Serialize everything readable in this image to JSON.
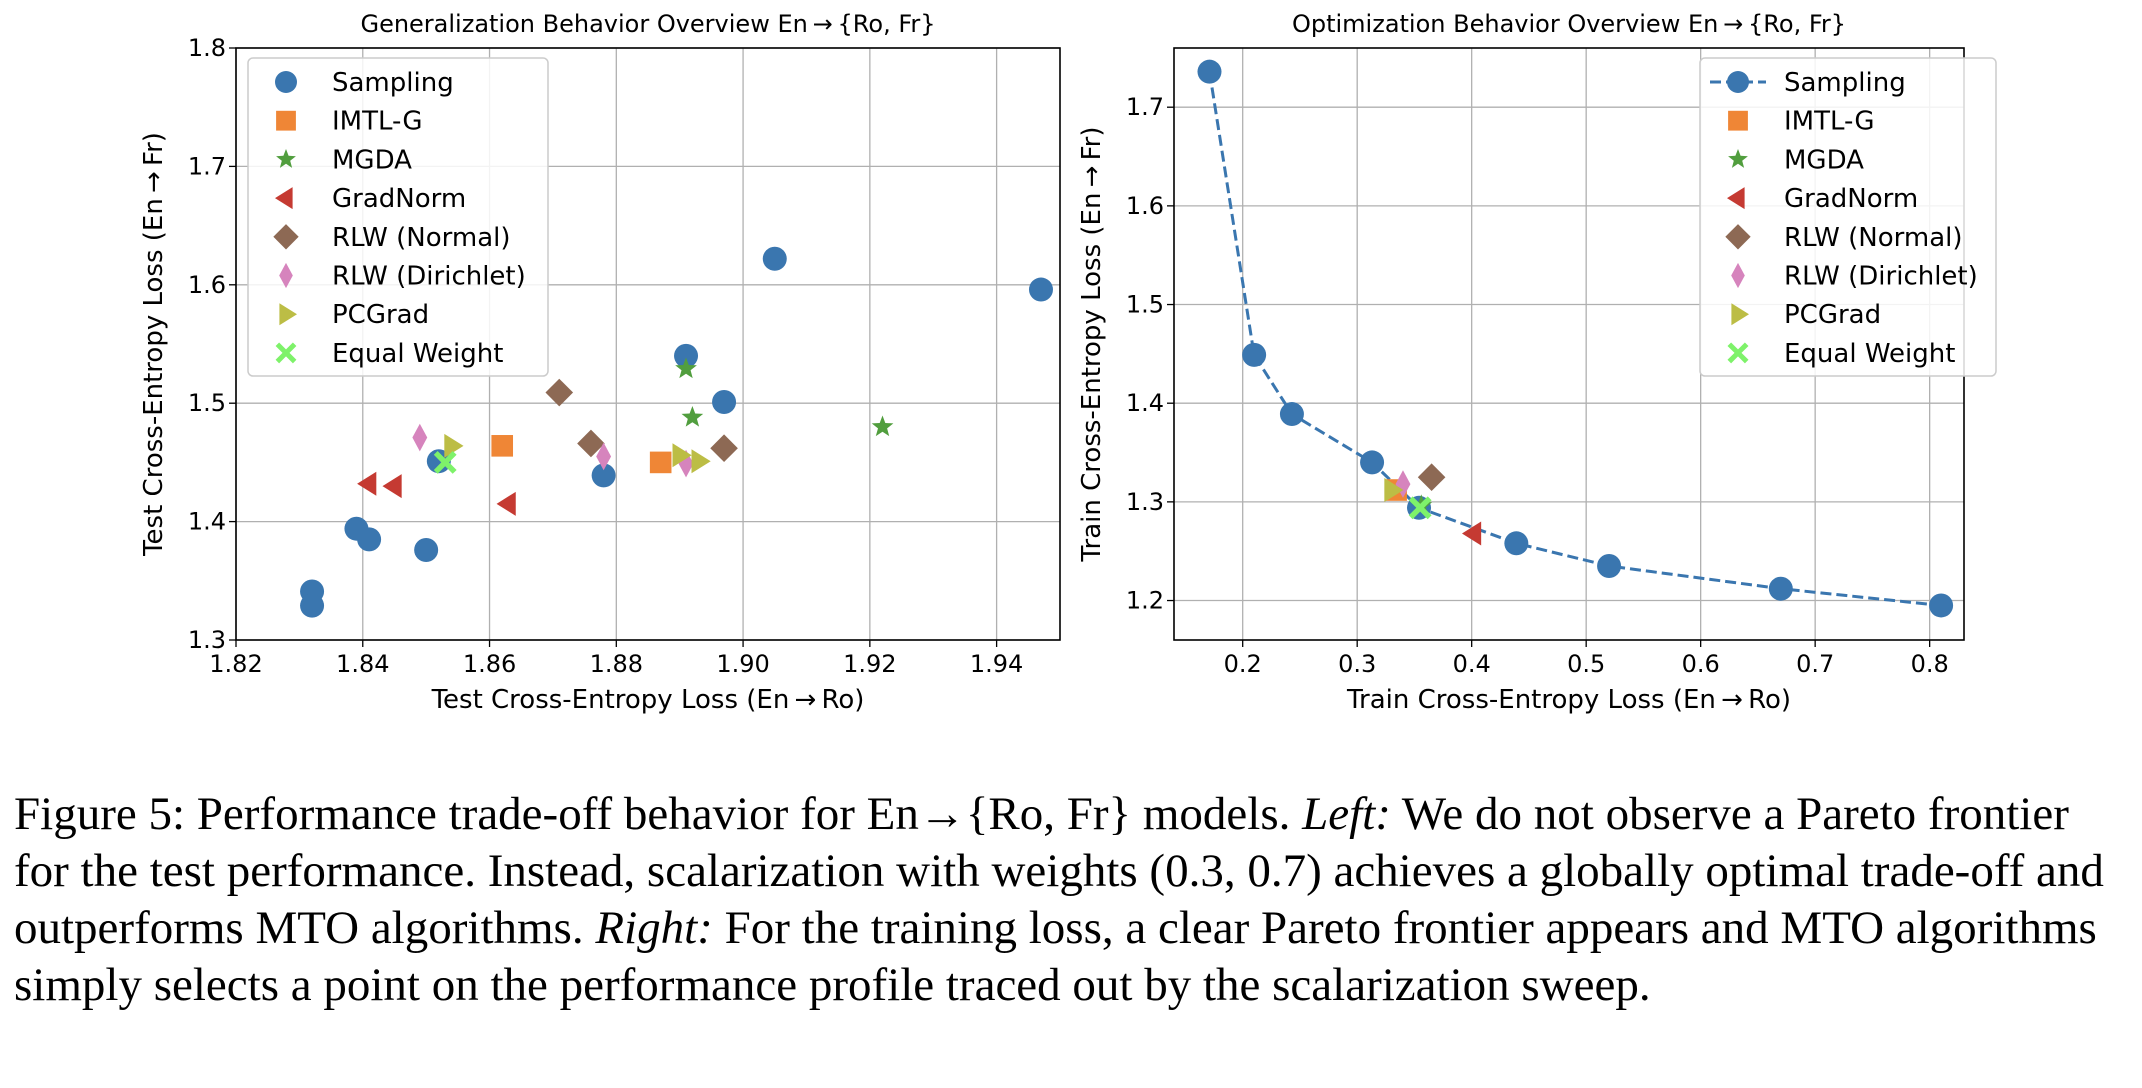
{
  "colors": {
    "Sampling": "#3a76af",
    "IMTL-G": "#ef8636",
    "MGDA": "#519e3e",
    "GradNorm": "#c53a32",
    "RLW (Normal)": "#8d6954",
    "RLW (Dirichlet)": "#d684bd",
    "PCGrad": "#bcbd45",
    "Equal Weight": "#7ef26a"
  },
  "chart_data": [
    {
      "type": "scatter",
      "title": "Generalization Behavior Overview En → {Ro, Fr}",
      "xlabel": "Test Cross-Entropy Loss (En → Ro)",
      "ylabel": "Test Cross-Entropy Loss (En → Fr)",
      "xlim": [
        1.82,
        1.95
      ],
      "ylim": [
        1.3,
        1.8
      ],
      "xticks": [
        "1.82",
        "1.84",
        "1.86",
        "1.88",
        "1.90",
        "1.92",
        "1.94"
      ],
      "yticks": [
        "1.3",
        "1.4",
        "1.5",
        "1.6",
        "1.7",
        "1.8"
      ],
      "grid": true,
      "legend_position": "upper-left",
      "series": [
        {
          "name": "Sampling",
          "marker": "circle",
          "x": [
            1.832,
            1.832,
            1.839,
            1.841,
            1.85,
            1.852,
            1.878,
            1.891,
            1.897,
            1.905,
            1.947
          ],
          "y": [
            1.341,
            1.329,
            1.394,
            1.385,
            1.376,
            1.451,
            1.439,
            1.54,
            1.501,
            1.622,
            1.596
          ]
        },
        {
          "name": "IMTL-G",
          "marker": "square",
          "x": [
            1.862,
            1.887
          ],
          "y": [
            1.464,
            1.45
          ]
        },
        {
          "name": "MGDA",
          "marker": "star",
          "x": [
            1.891,
            1.892,
            1.922
          ],
          "y": [
            1.529,
            1.488,
            1.48
          ]
        },
        {
          "name": "GradNorm",
          "marker": "triangle-left",
          "x": [
            1.841,
            1.845,
            1.863
          ],
          "y": [
            1.432,
            1.43,
            1.415
          ]
        },
        {
          "name": "RLW (Normal)",
          "marker": "diamond",
          "x": [
            1.871,
            1.876,
            1.897
          ],
          "y": [
            1.509,
            1.466,
            1.462
          ]
        },
        {
          "name": "RLW (Dirichlet)",
          "marker": "thin-diamond",
          "x": [
            1.849,
            1.878,
            1.891
          ],
          "y": [
            1.471,
            1.455,
            1.449
          ]
        },
        {
          "name": "PCGrad",
          "marker": "triangle-right",
          "x": [
            1.854,
            1.89,
            1.893
          ],
          "y": [
            1.464,
            1.456,
            1.451
          ]
        },
        {
          "name": "Equal Weight",
          "marker": "x-filled",
          "x": [
            1.853
          ],
          "y": [
            1.45
          ]
        }
      ]
    },
    {
      "type": "scatter",
      "title": "Optimization Behavior Overview En → {Ro, Fr}",
      "xlabel": "Train Cross-Entropy Loss (En → Ro)",
      "ylabel": "Train Cross-Entropy Loss (En → Fr)",
      "xlim": [
        0.14,
        0.83
      ],
      "ylim": [
        1.16,
        1.76
      ],
      "xticks": [
        "0.2",
        "0.3",
        "0.4",
        "0.5",
        "0.6",
        "0.7",
        "0.8"
      ],
      "yticks": [
        "1.2",
        "1.3",
        "1.4",
        "1.5",
        "1.6",
        "1.7"
      ],
      "grid": true,
      "legend_position": "upper-right",
      "series": [
        {
          "name": "Sampling",
          "marker": "circle",
          "line": "dashed",
          "x": [
            0.171,
            0.21,
            0.243,
            0.313,
            0.354,
            0.439,
            0.52,
            0.67,
            0.81
          ],
          "y": [
            1.736,
            1.449,
            1.389,
            1.34,
            1.294,
            1.258,
            1.235,
            1.212,
            1.195
          ]
        },
        {
          "name": "IMTL-G",
          "marker": "square",
          "x": [
            0.334
          ],
          "y": [
            1.312
          ]
        },
        {
          "name": "MGDA",
          "marker": "star",
          "x": [
            0.356
          ],
          "y": [
            1.296
          ]
        },
        {
          "name": "GradNorm",
          "marker": "triangle-left",
          "x": [
            0.402
          ],
          "y": [
            1.268
          ]
        },
        {
          "name": "RLW (Normal)",
          "marker": "diamond",
          "x": [
            0.365
          ],
          "y": [
            1.325
          ]
        },
        {
          "name": "RLW (Dirichlet)",
          "marker": "thin-diamond",
          "x": [
            0.34
          ],
          "y": [
            1.318
          ]
        },
        {
          "name": "PCGrad",
          "marker": "triangle-right",
          "x": [
            0.33
          ],
          "y": [
            1.312
          ]
        },
        {
          "name": "Equal Weight",
          "marker": "x-filled",
          "x": [
            0.355
          ],
          "y": [
            1.294
          ]
        }
      ]
    }
  ],
  "caption": {
    "prefix": "Figure 5: Performance trade-off behavior for En→{Ro, Fr} models. ",
    "left_label": "Left:",
    "left_text": " We do not observe a Pareto frontier for the test performance. Instead, scalarization with weights (0.3, 0.7) achieves a globally optimal trade-off and outperforms MTO algorithms. ",
    "right_label": "Right:",
    "right_text": " For the training loss, a clear Pareto frontier appears and MTO algorithms simply selects a point on the performance profile traced out by the scalarization sweep."
  }
}
